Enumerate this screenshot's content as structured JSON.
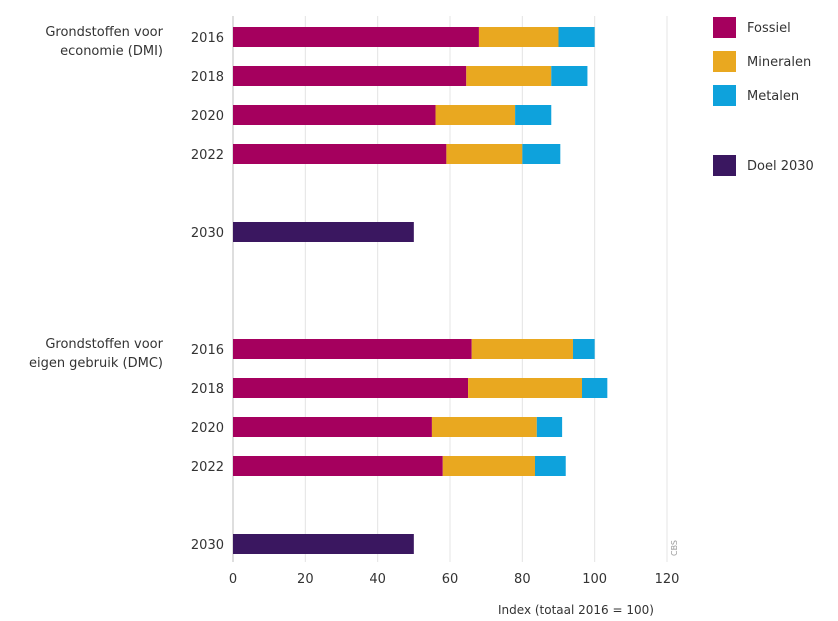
{
  "chart_data": {
    "type": "bar",
    "orientation": "horizontal",
    "stacked": true,
    "xlabel": "Index (totaal 2016 = 100)",
    "xlim": [
      0,
      120
    ],
    "xticks": [
      0,
      20,
      40,
      60,
      80,
      100,
      120
    ],
    "xtick_labels": [
      "0",
      "20",
      "40",
      "60",
      "80",
      "100",
      "120"
    ],
    "grid": "vertical",
    "legend_position": "right",
    "source": "CBS",
    "series": [
      {
        "name": "Fossiel",
        "color": "#a5005e"
      },
      {
        "name": "Mineralen",
        "color": "#e9a820"
      },
      {
        "name": "Metalen",
        "color": "#0ea2dc"
      },
      {
        "name": "Doel 2030",
        "color": "#3a1760"
      }
    ],
    "groups": [
      {
        "label_lines": [
          "Grondstoffen voor",
          "economie (DMI)"
        ],
        "rows": [
          {
            "year": "2016",
            "values": {
              "Fossiel": 68,
              "Mineralen": 22,
              "Metalen": 10
            }
          },
          {
            "year": "2018",
            "values": {
              "Fossiel": 64.5,
              "Mineralen": 23.5,
              "Metalen": 10
            }
          },
          {
            "year": "2020",
            "values": {
              "Fossiel": 56,
              "Mineralen": 22,
              "Metalen": 10
            }
          },
          {
            "year": "2022",
            "values": {
              "Fossiel": 59,
              "Mineralen": 21,
              "Metalen": 10.5
            }
          },
          {
            "year": "2030",
            "values": {
              "Doel 2030": 50
            }
          }
        ]
      },
      {
        "label_lines": [
          "Grondstoffen voor",
          "eigen gebruik (DMC)"
        ],
        "rows": [
          {
            "year": "2016",
            "values": {
              "Fossiel": 66,
              "Mineralen": 28,
              "Metalen": 6
            }
          },
          {
            "year": "2018",
            "values": {
              "Fossiel": 65,
              "Mineralen": 31.5,
              "Metalen": 7
            }
          },
          {
            "year": "2020",
            "values": {
              "Fossiel": 55,
              "Mineralen": 29,
              "Metalen": 7
            }
          },
          {
            "year": "2022",
            "values": {
              "Fossiel": 58,
              "Mineralen": 25.5,
              "Metalen": 8.5
            }
          },
          {
            "year": "2030",
            "values": {
              "Doel 2030": 50
            }
          }
        ]
      }
    ]
  }
}
